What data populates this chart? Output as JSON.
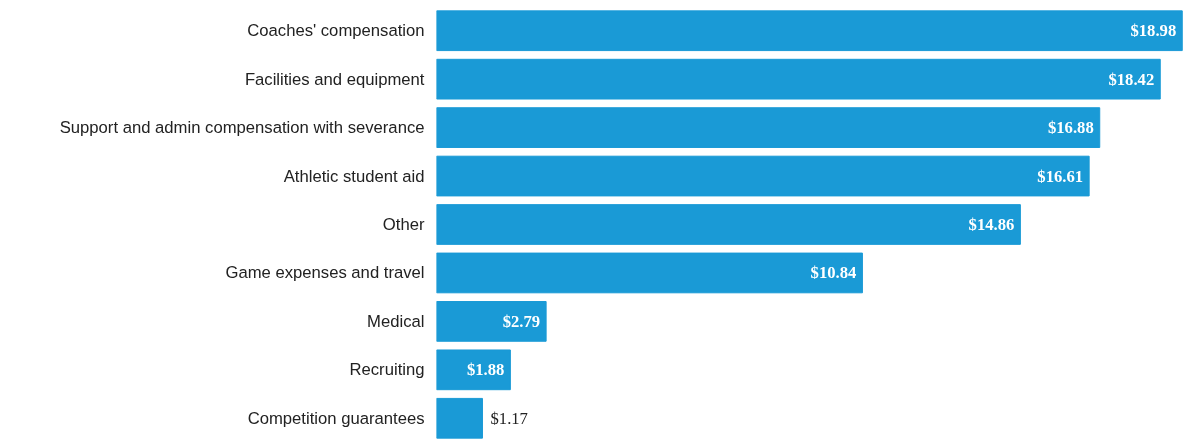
{
  "chart_data": {
    "type": "bar",
    "orientation": "horizontal",
    "categories": [
      "Coaches' compensation",
      "Facilities and equipment",
      "Support and admin compensation with severance",
      "Athletic student aid",
      "Other",
      "Game expenses and travel",
      "Medical",
      "Recruiting",
      "Competition guarantees"
    ],
    "values": [
      18.98,
      18.42,
      16.88,
      16.61,
      14.86,
      10.84,
      2.79,
      1.88,
      1.17
    ],
    "color": "#1a9ad6",
    "value_labels": [
      "$18.98",
      "$18.42",
      "$16.88",
      "$16.61",
      "$14.86",
      "$10.84",
      "$2.79",
      "$1.88",
      "$1.17"
    ],
    "tick_labels": "y",
    "grid": false
  }
}
